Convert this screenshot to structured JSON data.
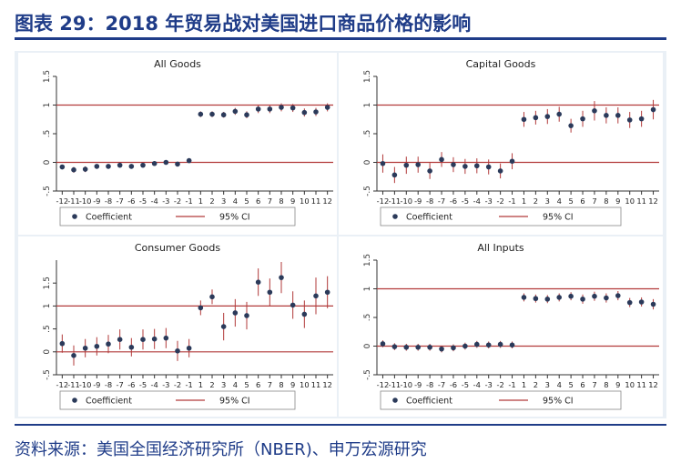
{
  "figure": {
    "title": "图表 29：2018 年贸易战对美国进口商品价格的影响",
    "source": "资料来源：美国全国经济研究所（NBER)、申万宏源研究"
  },
  "colors": {
    "title_blue": "#1f3c88",
    "point": "#2b3a5a",
    "ci_line": "#b23a3a",
    "ref_line": "#b23a3a",
    "panel_bg": "#ffffff",
    "frame_bg": "#eaf0f6"
  },
  "legend_labels": {
    "point": "Coefficient",
    "line": "95% CI"
  },
  "chart_data": [
    {
      "type": "scatter",
      "title": "All Goods",
      "legend": "bottom",
      "x": [
        -12,
        -11,
        -10,
        -9,
        -8,
        -7,
        -6,
        -5,
        -4,
        -3,
        -2,
        -1,
        1,
        2,
        3,
        4,
        5,
        6,
        7,
        8,
        9,
        10,
        11,
        12
      ],
      "xticks": [
        "-12",
        "-11",
        "-10",
        "-9",
        "-8",
        "-7",
        "-6",
        "-5",
        "-4",
        "-3",
        "-2",
        "-1",
        "1",
        "2",
        "3",
        "4",
        "5",
        "6",
        "7",
        "8",
        "9",
        "10",
        "11",
        "12"
      ],
      "y": [
        -0.08,
        -0.13,
        -0.12,
        -0.07,
        -0.07,
        -0.05,
        -0.07,
        -0.05,
        -0.02,
        0.0,
        -0.03,
        0.03,
        0.84,
        0.84,
        0.83,
        0.89,
        0.83,
        0.93,
        0.93,
        0.96,
        0.95,
        0.87,
        0.88,
        0.96
      ],
      "ci_low": [
        -0.12,
        -0.18,
        -0.17,
        -0.11,
        -0.11,
        -0.09,
        -0.11,
        -0.09,
        -0.06,
        -0.04,
        -0.07,
        -0.01,
        0.79,
        0.79,
        0.78,
        0.83,
        0.77,
        0.86,
        0.86,
        0.89,
        0.88,
        0.8,
        0.81,
        0.89
      ],
      "ci_high": [
        -0.04,
        -0.08,
        -0.07,
        -0.03,
        -0.03,
        -0.01,
        -0.03,
        -0.01,
        0.02,
        0.04,
        0.01,
        0.07,
        0.89,
        0.89,
        0.88,
        0.95,
        0.89,
        1.0,
        1.0,
        1.03,
        1.02,
        0.94,
        0.95,
        1.03
      ],
      "ref_lines": [
        0,
        1
      ],
      "ylim": [
        -0.5,
        1.5
      ],
      "yticks": [
        "-.5",
        "0",
        ".5",
        "1",
        "1.5"
      ],
      "ytick_values": [
        -0.5,
        0,
        0.5,
        1,
        1.5
      ]
    },
    {
      "type": "scatter",
      "title": "Capital Goods",
      "legend": "bottom",
      "x": [
        -12,
        -11,
        -10,
        -9,
        -8,
        -7,
        -6,
        -5,
        -4,
        -3,
        -2,
        -1,
        1,
        2,
        3,
        4,
        5,
        6,
        7,
        8,
        9,
        10,
        11,
        12
      ],
      "xticks": [
        "-12",
        "-11",
        "-10",
        "-9",
        "-8",
        "-7",
        "-6",
        "-5",
        "-4",
        "-3",
        "-2",
        "-1",
        "1",
        "2",
        "3",
        "4",
        "5",
        "6",
        "7",
        "8",
        "9",
        "10",
        "11",
        "12"
      ],
      "y": [
        -0.02,
        -0.22,
        -0.05,
        -0.04,
        -0.15,
        0.05,
        -0.04,
        -0.07,
        -0.06,
        -0.08,
        -0.15,
        0.02,
        0.75,
        0.78,
        0.8,
        0.84,
        0.64,
        0.76,
        0.9,
        0.82,
        0.82,
        0.74,
        0.76,
        0.92
      ],
      "ci_low": [
        -0.18,
        -0.36,
        -0.2,
        -0.18,
        -0.29,
        -0.08,
        -0.17,
        -0.2,
        -0.19,
        -0.21,
        -0.28,
        -0.12,
        0.62,
        0.66,
        0.67,
        0.71,
        0.52,
        0.62,
        0.73,
        0.68,
        0.68,
        0.6,
        0.62,
        0.75
      ],
      "ci_high": [
        0.14,
        -0.08,
        0.1,
        0.1,
        -0.01,
        0.18,
        0.09,
        0.06,
        0.07,
        0.05,
        -0.02,
        0.16,
        0.88,
        0.9,
        0.93,
        0.97,
        0.76,
        0.9,
        1.07,
        0.96,
        0.96,
        0.88,
        0.9,
        1.09
      ],
      "ref_lines": [
        0,
        1
      ],
      "ylim": [
        -0.5,
        1.5
      ],
      "yticks": [
        "-.5",
        "0",
        ".5",
        "1",
        "1.5"
      ],
      "ytick_values": [
        -0.5,
        0,
        0.5,
        1,
        1.5
      ]
    },
    {
      "type": "scatter",
      "title": "Consumer Goods",
      "legend": "bottom",
      "x": [
        -12,
        -11,
        -10,
        -9,
        -8,
        -7,
        -6,
        -5,
        -4,
        -3,
        -2,
        -1,
        1,
        2,
        3,
        4,
        5,
        6,
        7,
        8,
        9,
        10,
        11,
        12
      ],
      "xticks": [
        "-12",
        "-11",
        "-10",
        "-9",
        "-8",
        "-7",
        "-6",
        "-5",
        "-4",
        "-3",
        "-2",
        "-1",
        "1",
        "2",
        "3",
        "4",
        "5",
        "6",
        "7",
        "8",
        "9",
        "10",
        "11",
        "12"
      ],
      "y": [
        0.18,
        -0.08,
        0.08,
        0.12,
        0.17,
        0.27,
        0.1,
        0.27,
        0.28,
        0.3,
        0.02,
        0.08,
        0.96,
        1.2,
        0.55,
        0.85,
        0.79,
        1.52,
        1.3,
        1.62,
        1.02,
        0.82,
        1.22,
        1.3
      ],
      "ci_low": [
        -0.02,
        -0.3,
        -0.12,
        -0.08,
        -0.03,
        0.05,
        -0.1,
        0.05,
        0.06,
        0.08,
        -0.2,
        -0.12,
        0.8,
        1.04,
        0.25,
        0.55,
        0.49,
        1.22,
        1.0,
        1.28,
        0.72,
        0.52,
        0.82,
        0.95
      ],
      "ci_high": [
        0.38,
        0.14,
        0.28,
        0.32,
        0.37,
        0.49,
        0.3,
        0.49,
        0.5,
        0.52,
        0.24,
        0.28,
        1.12,
        1.36,
        0.85,
        1.15,
        1.09,
        1.82,
        1.6,
        1.96,
        1.32,
        1.12,
        1.62,
        1.65
      ],
      "ref_lines": [
        0,
        1
      ],
      "ylim": [
        -0.5,
        2.0
      ],
      "yticks": [
        "-.5",
        "0",
        ".5",
        "1",
        "1.5"
      ],
      "ytick_values": [
        -0.5,
        0,
        0.5,
        1,
        1.5
      ]
    },
    {
      "type": "scatter",
      "title": "All Inputs",
      "legend": "bottom",
      "x": [
        -12,
        -11,
        -10,
        -9,
        -8,
        -7,
        -6,
        -5,
        -4,
        -3,
        -2,
        -1,
        1,
        2,
        3,
        4,
        5,
        6,
        7,
        8,
        9,
        10,
        11,
        12
      ],
      "xticks": [
        "-12",
        "-11",
        "-10",
        "-9",
        "-8",
        "-7",
        "-6",
        "-5",
        "-4",
        "-3",
        "-2",
        "-1",
        "1",
        "2",
        "3",
        "4",
        "5",
        "6",
        "7",
        "8",
        "9",
        "10",
        "11",
        "12"
      ],
      "y": [
        0.04,
        -0.01,
        -0.02,
        -0.02,
        -0.02,
        -0.05,
        -0.03,
        0.0,
        0.03,
        0.02,
        0.03,
        0.02,
        0.85,
        0.83,
        0.82,
        0.85,
        0.87,
        0.82,
        0.87,
        0.84,
        0.88,
        0.76,
        0.77,
        0.73
      ],
      "ci_low": [
        -0.02,
        -0.07,
        -0.08,
        -0.08,
        -0.08,
        -0.11,
        -0.09,
        -0.06,
        -0.03,
        -0.04,
        -0.03,
        -0.04,
        0.78,
        0.76,
        0.75,
        0.78,
        0.8,
        0.74,
        0.79,
        0.76,
        0.8,
        0.68,
        0.69,
        0.64
      ],
      "ci_high": [
        0.1,
        0.05,
        0.04,
        0.04,
        0.04,
        0.01,
        0.03,
        0.06,
        0.09,
        0.08,
        0.09,
        0.08,
        0.92,
        0.9,
        0.89,
        0.92,
        0.94,
        0.9,
        0.95,
        0.92,
        0.96,
        0.84,
        0.85,
        0.82
      ],
      "ref_lines": [
        0,
        1
      ],
      "ylim": [
        -0.5,
        1.5
      ],
      "yticks": [
        "-.5",
        "0",
        ".5",
        "1",
        "1.5"
      ],
      "ytick_values": [
        -0.5,
        0,
        0.5,
        1,
        1.5
      ]
    }
  ]
}
